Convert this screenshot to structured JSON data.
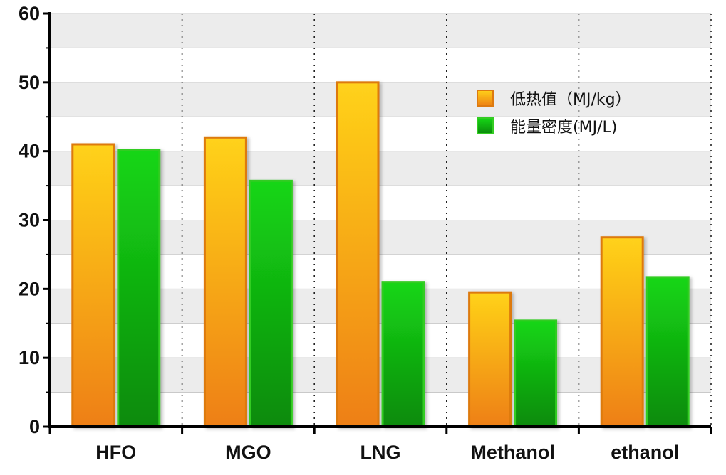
{
  "chart_data": {
    "type": "bar",
    "categories": [
      "HFO",
      "MGO",
      "LNG",
      "Methanol",
      "ethanol"
    ],
    "series": [
      {
        "name": "低热值（MJ/kg）",
        "values": [
          41.0,
          42.0,
          50.0,
          19.5,
          27.5
        ],
        "color_top": "#ffd21a",
        "color_bottom": "#ee7f12",
        "stroke": "#dd7a10"
      },
      {
        "name": "能量密度(MJ/L)",
        "values": [
          40.2,
          35.7,
          21.0,
          15.4,
          21.7
        ],
        "color_top": "#15d615",
        "color_bottom": "#0b8a0b",
        "stroke": "#33cc22"
      }
    ],
    "yticks": [
      "0",
      "10",
      "20",
      "30",
      "40",
      "50",
      "60"
    ],
    "ylim": [
      0,
      60
    ],
    "grid": true,
    "alternating_bands": true,
    "legend_position": "top-right",
    "title": "",
    "xlabel": "",
    "ylabel": ""
  }
}
